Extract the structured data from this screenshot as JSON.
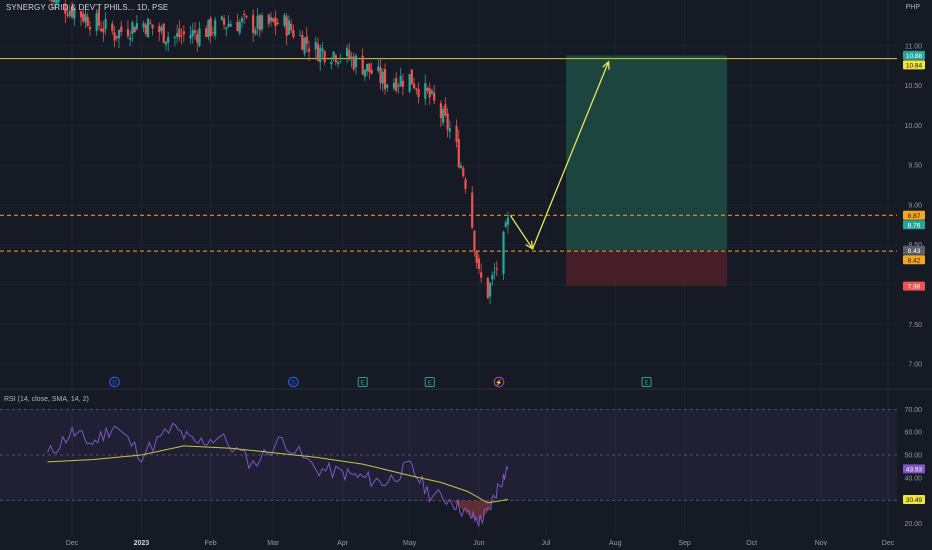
{
  "header": {
    "symbol_title": "SYNERGY GRID & DEV'T PHILS... 1D, PSE",
    "currency": "PHP"
  },
  "rsi_panel": {
    "label": "RSI (14, close, SMA, 14, 2)"
  },
  "colors": {
    "background": "#161a25",
    "up": "#26a69a",
    "down": "#ef5350",
    "rsi_line": "#7e57c2",
    "rsi_ma": "#c8c443",
    "target_zone": "#1c4e43",
    "stop_zone": "#4a1f28",
    "annotation": "#e6e65a",
    "level_line": "#f5a623"
  },
  "chart_data": [
    {
      "type": "candlestick",
      "title": "SYNERGY GRID & DEV'T PHILS... 1D, PSE",
      "currency": "PHP",
      "x_axis_labels": [
        "Dec",
        "2023",
        "Feb",
        "Mar",
        "Apr",
        "May",
        "Jun",
        "Jul",
        "Aug",
        "Sep",
        "Oct",
        "Nov",
        "Dec"
      ],
      "y_ticks": [
        7.0,
        7.5,
        8.0,
        8.5,
        9.0,
        9.5,
        10.0,
        10.5,
        11.0
      ],
      "ylim": [
        6.9,
        11.35
      ],
      "close_path": [
        [
          "2022-11-20",
          11.6
        ],
        [
          "2022-12-05",
          11.4
        ],
        [
          "2022-12-20",
          11.15
        ],
        [
          "2023-01-01",
          11.3
        ],
        [
          "2023-01-15",
          11.1
        ],
        [
          "2023-01-31",
          11.2
        ],
        [
          "2023-02-10",
          11.3
        ],
        [
          "2023-02-25",
          11.25
        ],
        [
          "2023-03-05",
          11.3
        ],
        [
          "2023-03-20",
          10.95
        ],
        [
          "2023-04-01",
          10.9
        ],
        [
          "2023-04-10",
          10.75
        ],
        [
          "2023-04-20",
          10.55
        ],
        [
          "2023-05-01",
          10.6
        ],
        [
          "2023-05-10",
          10.35
        ],
        [
          "2023-05-20",
          9.9
        ],
        [
          "2023-05-27",
          9.2
        ],
        [
          "2023-06-01",
          8.1
        ],
        [
          "2023-06-05",
          7.9
        ],
        [
          "2023-06-10",
          8.3
        ],
        [
          "2023-06-14",
          8.76
        ]
      ],
      "last_price": "8.76",
      "price_labels": [
        {
          "value": 10.88,
          "text": "10.88",
          "kind": "target"
        },
        {
          "value": 10.84,
          "text": "10.84",
          "kind": "resistance"
        },
        {
          "value": 8.87,
          "text": "8.87",
          "kind": "level"
        },
        {
          "value": 8.76,
          "text": "8.76",
          "kind": "last"
        },
        {
          "value": 8.43,
          "text": "8.43",
          "kind": "entry"
        },
        {
          "value": 8.42,
          "text": "8.42",
          "kind": "level"
        },
        {
          "value": 7.98,
          "text": "7.98",
          "kind": "stop"
        }
      ],
      "horizontal_lines": [
        {
          "value": 10.84,
          "style": "solid",
          "color": "#d6d22c"
        },
        {
          "value": 8.87,
          "style": "dashed",
          "color": "#f5a623"
        },
        {
          "value": 8.42,
          "style": "dashed",
          "color": "#f5a623"
        }
      ],
      "long_position": {
        "start": "2023-07-10",
        "end": "2023-09-20",
        "entry": 8.43,
        "target": 10.88,
        "stop": 7.98
      },
      "annotation_arrows": [
        {
          "from": [
            "2023-06-15",
            8.87
          ],
          "to": [
            "2023-06-25",
            8.45
          ]
        },
        {
          "from": [
            "2023-06-25",
            8.45
          ],
          "to": [
            "2023-07-29",
            10.8
          ]
        }
      ],
      "event_markers": [
        {
          "date": "2022-12-20",
          "letter": "D"
        },
        {
          "date": "2023-03-10",
          "letter": "D"
        },
        {
          "date": "2023-04-10",
          "letter": "E"
        },
        {
          "date": "2023-05-10",
          "letter": "E"
        },
        {
          "date": "2023-06-10",
          "letter": "⚡"
        },
        {
          "date": "2023-08-15",
          "letter": "E"
        }
      ],
      "grid": true
    },
    {
      "type": "line",
      "title": "RSI (14, close, SMA, 14, 2)",
      "y_ticks": [
        20.0,
        30.0,
        40.0,
        50.0,
        60.0,
        70.0
      ],
      "ylim": [
        18,
        75
      ],
      "bands": [
        30,
        50,
        70
      ],
      "series": [
        {
          "name": "RSI",
          "points": [
            [
              "2022-11-20",
              50
            ],
            [
              "2022-12-01",
              60
            ],
            [
              "2022-12-10",
              55
            ],
            [
              "2022-12-20",
              63
            ],
            [
              "2023-01-01",
              50
            ],
            [
              "2023-01-15",
              62
            ],
            [
              "2023-01-25",
              55
            ],
            [
              "2023-02-05",
              58
            ],
            [
              "2023-02-20",
              46
            ],
            [
              "2023-03-05",
              57
            ],
            [
              "2023-03-20",
              44
            ],
            [
              "2023-04-01",
              42
            ],
            [
              "2023-04-10",
              40
            ],
            [
              "2023-04-20",
              38
            ],
            [
              "2023-05-01",
              45
            ],
            [
              "2023-05-10",
              33
            ],
            [
              "2023-05-20",
              30
            ],
            [
              "2023-05-27",
              24
            ],
            [
              "2023-06-01",
              21
            ],
            [
              "2023-06-05",
              25
            ],
            [
              "2023-06-10",
              37
            ],
            [
              "2023-06-14",
              43.93
            ]
          ]
        },
        {
          "name": "RSI-based MA",
          "points": [
            [
              "2022-11-20",
              47
            ],
            [
              "2022-12-10",
              48
            ],
            [
              "2023-01-01",
              50
            ],
            [
              "2023-01-20",
              54
            ],
            [
              "2023-02-10",
              53
            ],
            [
              "2023-03-01",
              51
            ],
            [
              "2023-03-20",
              49
            ],
            [
              "2023-04-10",
              46
            ],
            [
              "2023-05-01",
              41
            ],
            [
              "2023-05-15",
              38
            ],
            [
              "2023-05-27",
              34
            ],
            [
              "2023-06-05",
              29
            ],
            [
              "2023-06-14",
              30.49
            ]
          ]
        }
      ],
      "value_labels": [
        {
          "value": 43.93,
          "text": "43.93"
        },
        {
          "value": 30.49,
          "text": "30.49"
        }
      ],
      "grid": true
    }
  ]
}
